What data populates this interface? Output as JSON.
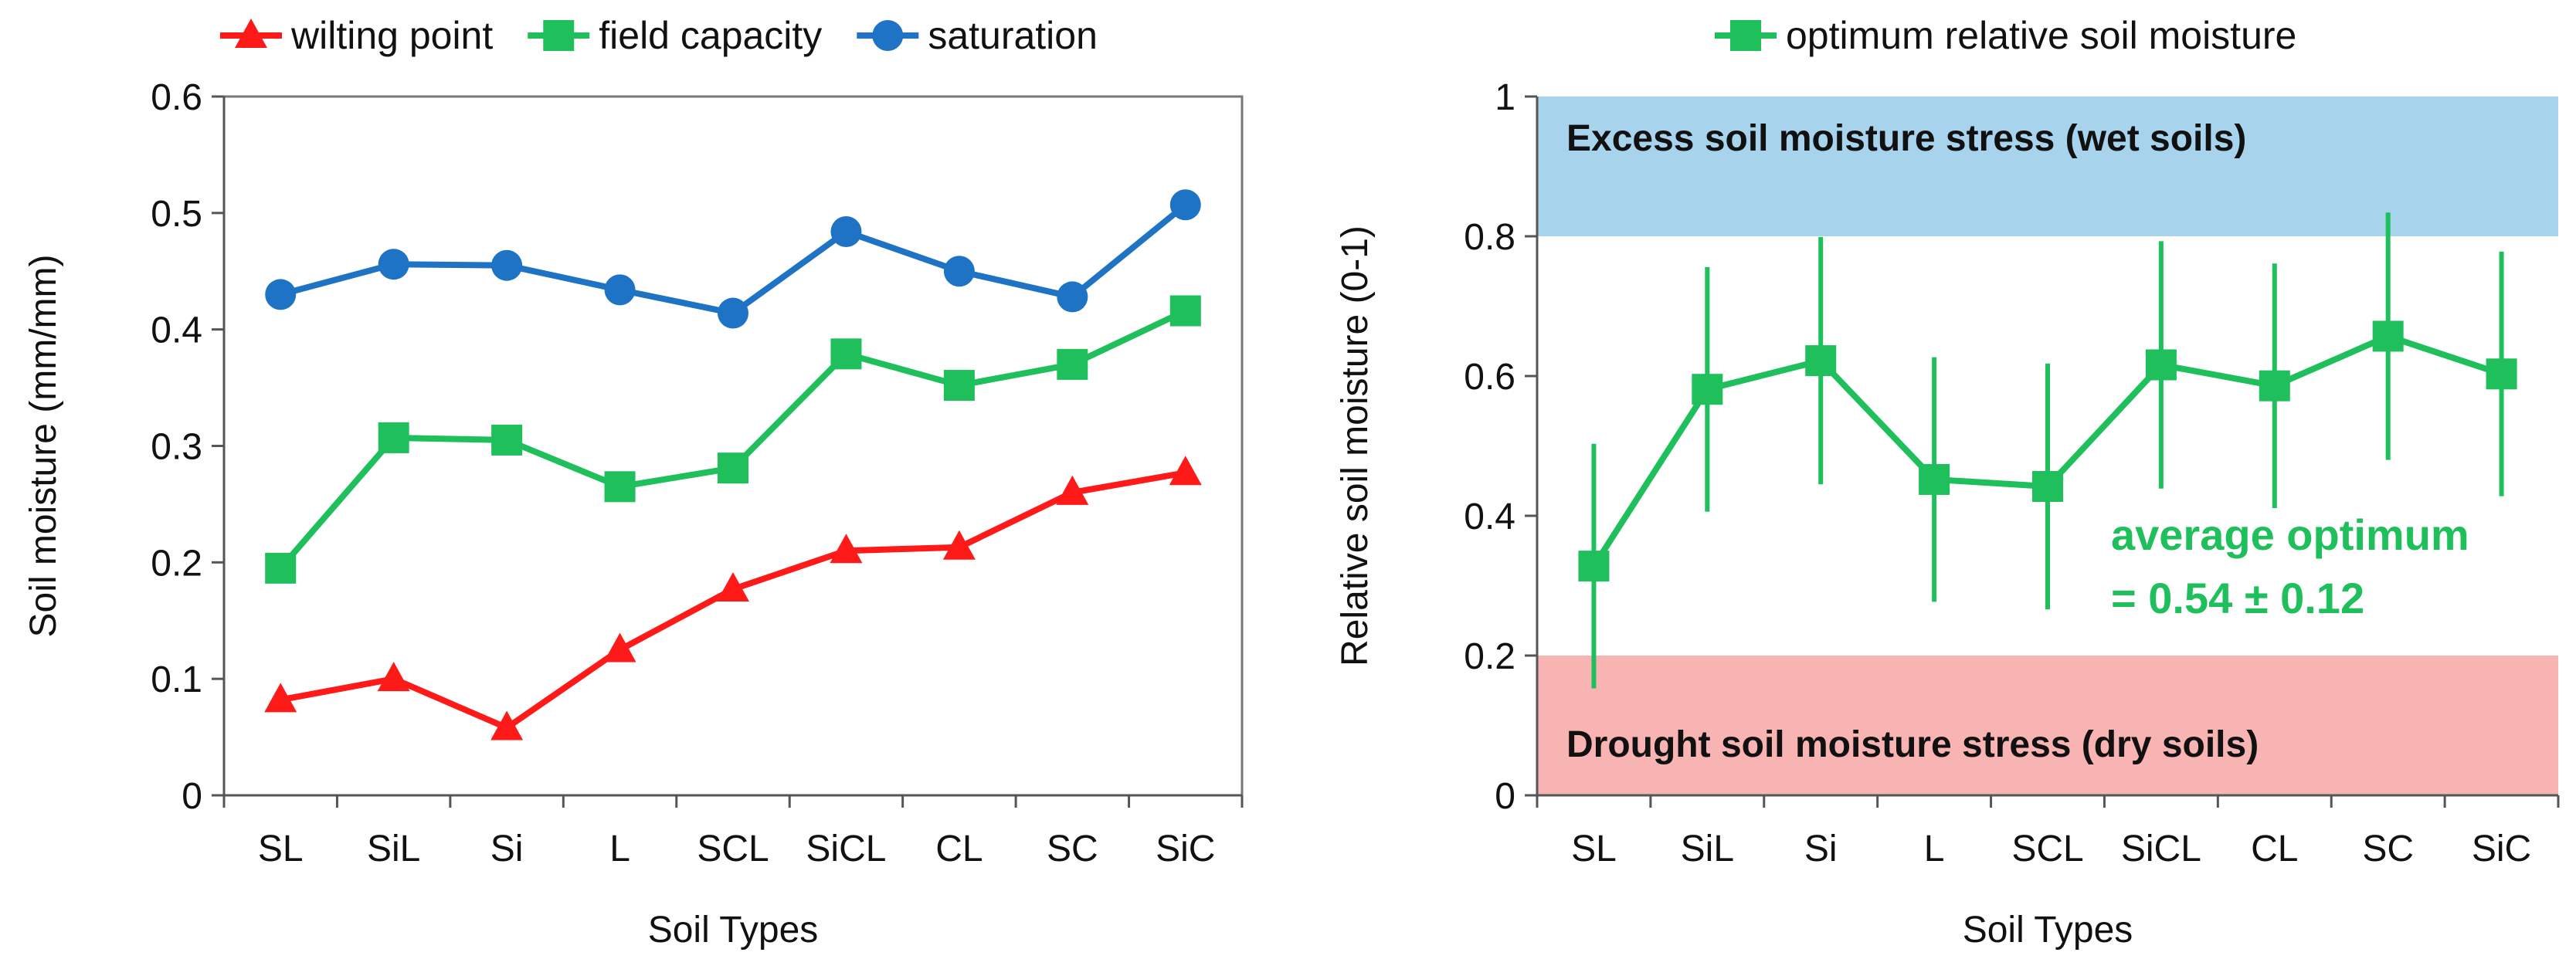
{
  "chart_data": [
    {
      "type": "line",
      "title": "",
      "xlabel": "Soil Types",
      "ylabel": "Soil moisture (mm/mm)",
      "categories": [
        "SL",
        "SiL",
        "Si",
        "L",
        "SCL",
        "SiCL",
        "CL",
        "SC",
        "SiC"
      ],
      "ylim": [
        0,
        0.6
      ],
      "yticks": [
        "0",
        "0.1",
        "0.2",
        "0.3",
        "0.4",
        "0.5",
        "0.6"
      ],
      "grid": false,
      "legend_position": "top",
      "series": [
        {
          "name": "wilting point",
          "color": "#ff1a1a",
          "marker": "triangle",
          "values": [
            0.082,
            0.1,
            0.058,
            0.125,
            0.177,
            0.21,
            0.213,
            0.26,
            0.277
          ]
        },
        {
          "name": "field capacity",
          "color": "#1fbf5c",
          "marker": "square",
          "values": [
            0.195,
            0.307,
            0.305,
            0.265,
            0.281,
            0.379,
            0.352,
            0.37,
            0.416
          ]
        },
        {
          "name": "saturation",
          "color": "#1f73c4",
          "marker": "circle",
          "values": [
            0.43,
            0.456,
            0.455,
            0.434,
            0.414,
            0.484,
            0.45,
            0.428,
            0.507
          ]
        }
      ]
    },
    {
      "type": "line",
      "title": "",
      "xlabel": "Soil Types",
      "ylabel": "Relative soil moisture (0-1)",
      "categories": [
        "SL",
        "SiL",
        "Si",
        "L",
        "SCL",
        "SiCL",
        "CL",
        "SC",
        "SiC"
      ],
      "ylim": [
        0,
        1
      ],
      "yticks": [
        "0",
        "0.2",
        "0.4",
        "0.6",
        "0.8",
        "1"
      ],
      "grid": false,
      "legend_position": "top",
      "series": [
        {
          "name": "optimum relative soil moisture",
          "color": "#1fbf5c",
          "marker": "square",
          "values": [
            0.328,
            0.581,
            0.622,
            0.452,
            0.442,
            0.616,
            0.586,
            0.657,
            0.603
          ],
          "error": [
            0.175,
            0.175,
            0.177,
            0.175,
            0.176,
            0.177,
            0.175,
            0.177,
            0.175
          ]
        }
      ],
      "bands": [
        {
          "from": 0.8,
          "to": 1.0,
          "color": "#a8d3ed",
          "label": "Excess soil moisture stress (wet soils)"
        },
        {
          "from": 0.0,
          "to": 0.2,
          "color": "#f8b3b3",
          "label": "Drought soil moisture stress (dry soils)"
        }
      ],
      "annotation": {
        "lines": [
          "average optimum",
          "= 0.54 ± 0.12"
        ],
        "color": "#1fbf5c"
      }
    }
  ]
}
